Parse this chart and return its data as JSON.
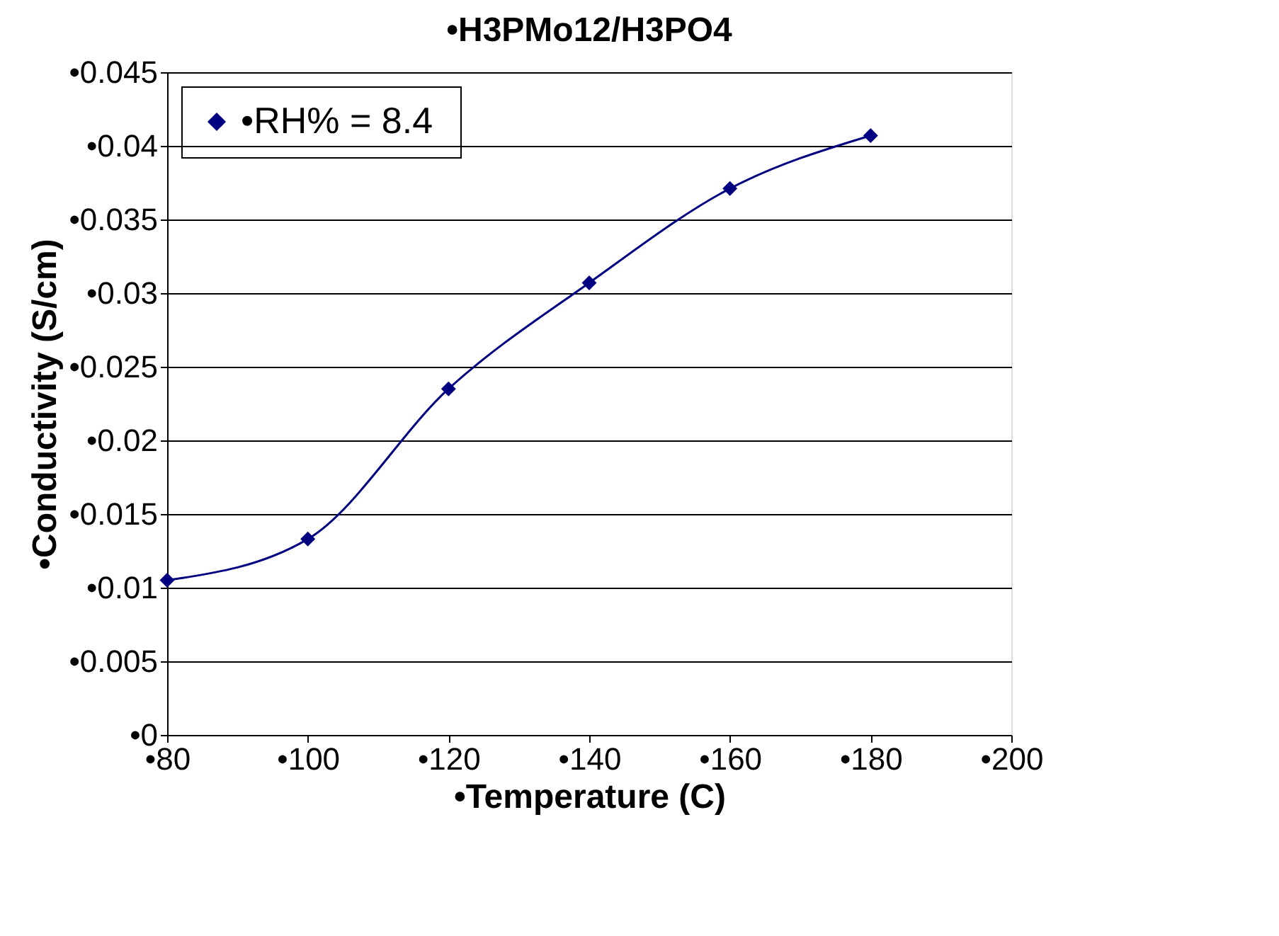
{
  "chart_data": {
    "type": "line",
    "title": "•H3PMo12/H3PO4",
    "xlabel": "•Temperature (C)",
    "ylabel": "•Conductivity (S/cm)",
    "x": [
      80,
      100,
      120,
      140,
      160,
      180
    ],
    "series": [
      {
        "name": "•RH%  = 8.4",
        "color": "#000080",
        "values": [
          0.0105,
          0.0133,
          0.0235,
          0.0307,
          0.0371,
          0.0407
        ]
      }
    ],
    "xlim": [
      80,
      200
    ],
    "ylim": [
      0,
      0.045
    ],
    "xticks": [
      {
        "value": 80,
        "label": "•80"
      },
      {
        "value": 100,
        "label": "•100"
      },
      {
        "value": 120,
        "label": "•120"
      },
      {
        "value": 140,
        "label": "•140"
      },
      {
        "value": 160,
        "label": "•160"
      },
      {
        "value": 180,
        "label": "•180"
      },
      {
        "value": 200,
        "label": "•200"
      }
    ],
    "yticks": [
      {
        "value": 0,
        "label": "•0"
      },
      {
        "value": 0.005,
        "label": "•0.005"
      },
      {
        "value": 0.01,
        "label": "•0.01"
      },
      {
        "value": 0.015,
        "label": "•0.015"
      },
      {
        "value": 0.02,
        "label": "•0.02"
      },
      {
        "value": 0.025,
        "label": "•0.025"
      },
      {
        "value": 0.03,
        "label": "•0.03"
      },
      {
        "value": 0.035,
        "label": "•0.035"
      },
      {
        "value": 0.04,
        "label": "•0.04"
      },
      {
        "value": 0.045,
        "label": "•0.045"
      }
    ],
    "grid": "y",
    "legend": "top left",
    "marker": "diamond",
    "line_style": "solid"
  }
}
